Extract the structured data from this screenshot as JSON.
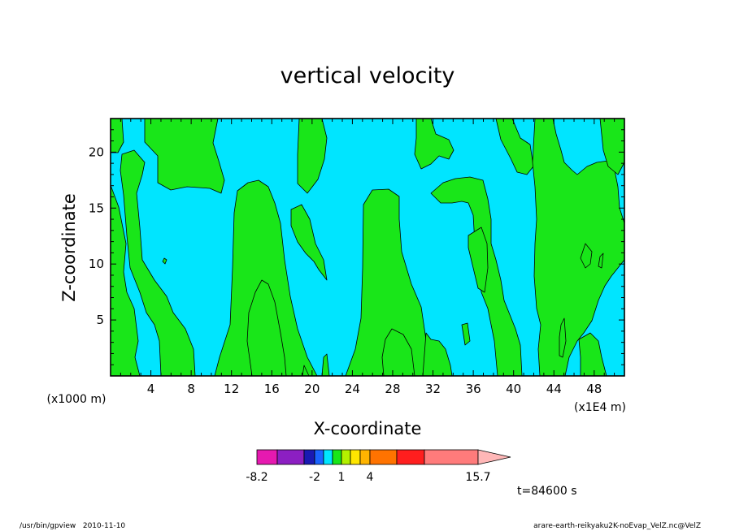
{
  "chart_data": {
    "type": "heatmap",
    "title": "vertical velocity",
    "xlabel": "X-coordinate",
    "ylabel": "Z-coordinate",
    "x_unit": "(x1E4 m)",
    "y_unit": "(x1000 m)",
    "xlim": [
      0,
      51
    ],
    "ylim": [
      0,
      23
    ],
    "x_ticks": [
      4,
      8,
      12,
      16,
      20,
      24,
      28,
      32,
      36,
      40,
      44,
      48
    ],
    "y_ticks": [
      5,
      10,
      15,
      20
    ],
    "grid": false,
    "colorbar": {
      "labels": [
        "-8.2",
        "-2",
        "1",
        "4",
        "15.7"
      ],
      "label_values": [
        -8.2,
        -2,
        1,
        4,
        15.7
      ],
      "colors": [
        "#e619b0",
        "#8c1fc2",
        "#1a1ab3",
        "#1a64ff",
        "#00e5ff",
        "#19e619",
        "#b3f000",
        "#ffe600",
        "#ffb400",
        "#ff7300",
        "#ff1e1e",
        "#ff7b7b",
        "#ffb7b7"
      ]
    },
    "field_colors": {
      "low": "#00e5ff",
      "high": "#19e619"
    },
    "time_label": "t=84600 s"
  },
  "footer": {
    "left": "/usr/bin/gpview   2010-11-10",
    "right": "arare-earth-reikyaku2K-noEvap_VelZ.nc@VelZ"
  }
}
